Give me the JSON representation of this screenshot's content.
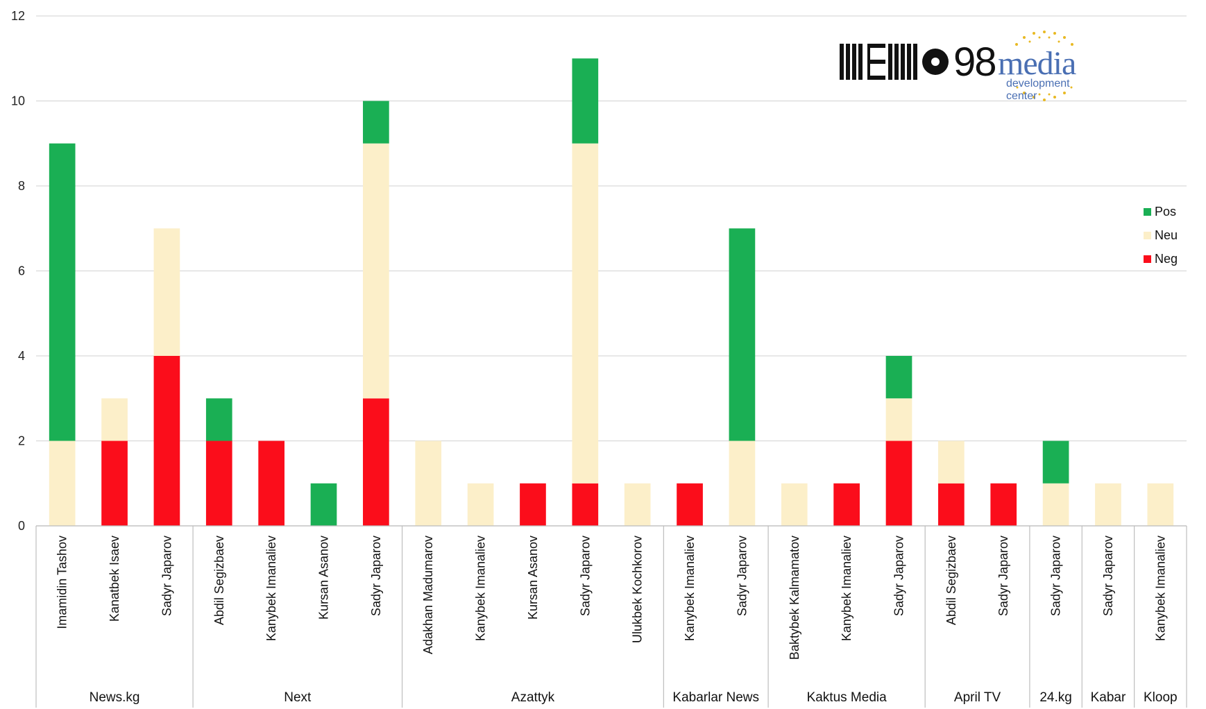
{
  "chart_data": {
    "type": "bar",
    "stacked": true,
    "ylim": [
      0,
      12
    ],
    "yticks": [
      "0",
      "2",
      "4",
      "6",
      "8",
      "10",
      "12"
    ],
    "grid": true,
    "legend_position": "right",
    "colors": {
      "Pos": "#1aaf54",
      "Neu": "#fcefc9",
      "Neg": "#fb0d1b"
    },
    "groups": [
      {
        "name": "News.kg",
        "categories": [
          "Imamidin Tashov",
          "Kanatbek Isaev",
          "Sadyr Japarov"
        ]
      },
      {
        "name": "Next",
        "categories": [
          "Abdil Segizbaev",
          "Kanybek Imanaliev",
          "Kursan Asanov",
          "Sadyr Japarov"
        ]
      },
      {
        "name": "Azattyk",
        "categories": [
          "Adakhan Madumarov",
          "Kanybek Imanaliev",
          "Kursan Asanov",
          "Sadyr Japarov",
          "Ulukbek Kochkorov"
        ]
      },
      {
        "name": "Kabarlar News",
        "categories": [
          "Kanybek Imanaliev",
          "Sadyr Japarov"
        ]
      },
      {
        "name": "Kaktus Media",
        "categories": [
          "Baktybek Kalmamatov",
          "Kanybek Imanaliev",
          "Sadyr Japarov"
        ]
      },
      {
        "name": "April TV",
        "categories": [
          "Abdil Segizbaev",
          "Sadyr Japarov"
        ]
      },
      {
        "name": "24.kg",
        "categories": [
          "Sadyr Japarov"
        ]
      },
      {
        "name": "Kabar",
        "categories": [
          "Sadyr Japarov"
        ]
      },
      {
        "name": "Kloop",
        "categories": [
          "Kanybek Imanaliev"
        ]
      }
    ],
    "series": [
      {
        "name": "Neg",
        "values": [
          0,
          2,
          4,
          2,
          2,
          0,
          3,
          0,
          0,
          1,
          1,
          0,
          1,
          0,
          0,
          1,
          2,
          1,
          1,
          0,
          0,
          0
        ]
      },
      {
        "name": "Neu",
        "values": [
          2,
          1,
          3,
          0,
          0,
          0,
          6,
          2,
          1,
          0,
          8,
          1,
          0,
          2,
          1,
          0,
          1,
          1,
          0,
          1,
          1,
          1
        ]
      },
      {
        "name": "Pos",
        "values": [
          7,
          0,
          0,
          1,
          0,
          1,
          1,
          0,
          0,
          0,
          2,
          0,
          0,
          5,
          0,
          0,
          1,
          0,
          0,
          1,
          0,
          0
        ]
      }
    ],
    "legend": [
      "Pos",
      "Neu",
      "Neg"
    ]
  },
  "logos": {
    "memo_text": "98",
    "mdc_word": "media",
    "mdc_sub": "development center"
  }
}
